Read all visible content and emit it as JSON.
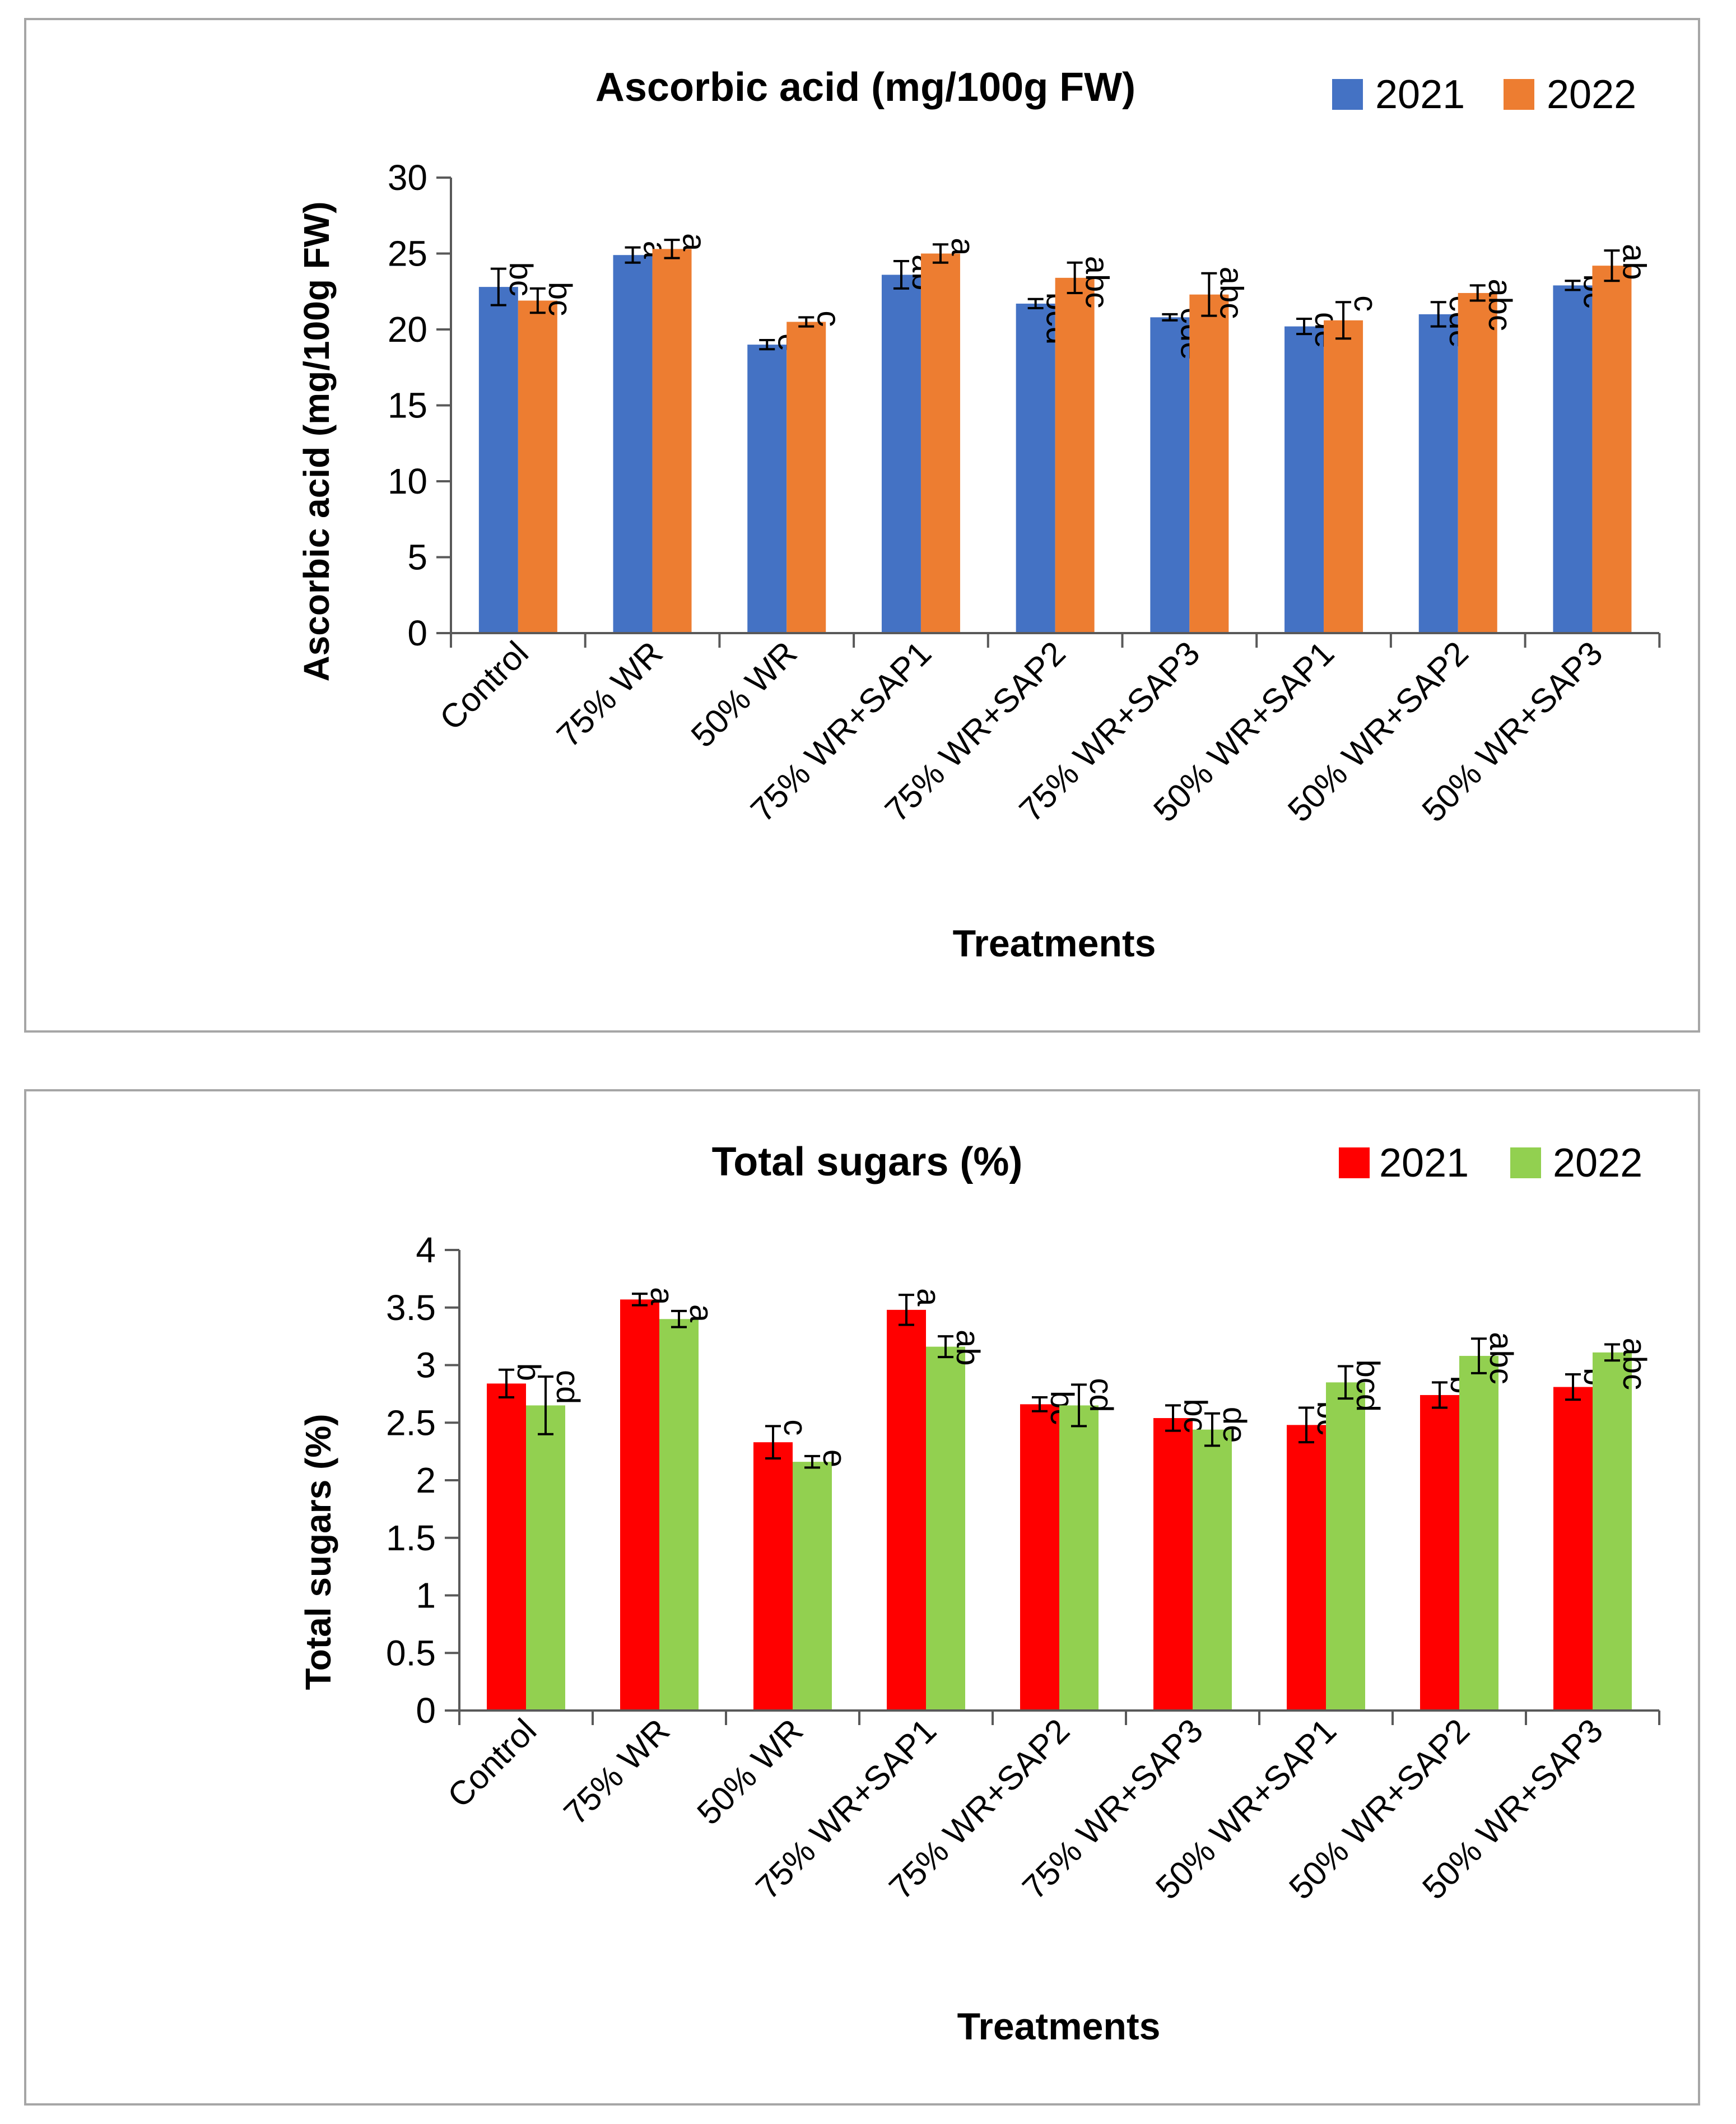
{
  "chart_data": [
    {
      "type": "bar",
      "title": "Ascorbic acid (mg/100g FW)",
      "xlabel": "Treatments",
      "ylabel": "Ascorbic acid (mg/100g FW)",
      "ylim": [
        0,
        30
      ],
      "yticks": [
        "0",
        "5",
        "10",
        "15",
        "20",
        "25",
        "30"
      ],
      "categories": [
        "Control",
        "75% WR",
        "50% WR",
        "75% WR+SAP1",
        "75% WR+SAP2",
        "75% WR+SAP3",
        "50% WR+SAP1",
        "50% WR+SAP2",
        "50% WR+SAP3"
      ],
      "legend_position": "top-right",
      "series": [
        {
          "name": "2021",
          "color": "#4472c4",
          "values": [
            22.8,
            24.9,
            19.0,
            23.6,
            21.7,
            20.8,
            20.2,
            21.0,
            22.9
          ],
          "errors": [
            1.2,
            0.5,
            0.3,
            0.9,
            0.3,
            0.2,
            0.5,
            0.8,
            0.3
          ],
          "letters": [
            "bc",
            "a",
            "e",
            "ab",
            "bcd",
            "cde",
            "de",
            "cde",
            "bc"
          ]
        },
        {
          "name": "2022",
          "color": "#ed7d31",
          "values": [
            21.9,
            25.3,
            20.5,
            25.0,
            23.4,
            22.3,
            20.6,
            22.4,
            24.2
          ],
          "errors": [
            0.8,
            0.6,
            0.3,
            0.6,
            1.0,
            1.4,
            1.2,
            0.5,
            1.0
          ],
          "letters": [
            "bc",
            "a",
            "c",
            "a",
            "abc",
            "abc",
            "c",
            "abc",
            "ab"
          ]
        }
      ]
    },
    {
      "type": "bar",
      "title": "Total sugars (%)",
      "xlabel": "Treatments",
      "ylabel": "Total sugars (%)",
      "ylim": [
        0,
        4
      ],
      "yticks": [
        "0",
        "0.5",
        "1",
        "1.5",
        "2",
        "2.5",
        "3",
        "3.5",
        "4"
      ],
      "categories": [
        "Control",
        "75% WR",
        "50% WR",
        "75% WR+SAP1",
        "75% WR+SAP2",
        "75% WR+SAP3",
        "50% WR+SAP1",
        "50% WR+SAP2",
        "50% WR+SAP3"
      ],
      "legend_position": "top-right",
      "series": [
        {
          "name": "2021",
          "color": "#ff0000",
          "values": [
            2.84,
            3.57,
            2.33,
            3.48,
            2.66,
            2.54,
            2.48,
            2.74,
            2.81
          ],
          "errors": [
            0.12,
            0.05,
            0.14,
            0.13,
            0.06,
            0.11,
            0.15,
            0.11,
            0.11
          ],
          "letters": [
            "b",
            "a",
            "c",
            "a",
            "bc",
            "bc",
            "bc",
            "b",
            "b"
          ]
        },
        {
          "name": "2022",
          "color": "#92d050",
          "values": [
            2.65,
            3.4,
            2.16,
            3.16,
            2.65,
            2.44,
            2.85,
            3.08,
            3.11
          ],
          "errors": [
            0.25,
            0.07,
            0.05,
            0.09,
            0.18,
            0.14,
            0.14,
            0.15,
            0.07
          ],
          "letters": [
            "cd",
            "a",
            "e",
            "ab",
            "cd",
            "de",
            "bcd",
            "abc",
            "abc"
          ]
        }
      ]
    }
  ]
}
